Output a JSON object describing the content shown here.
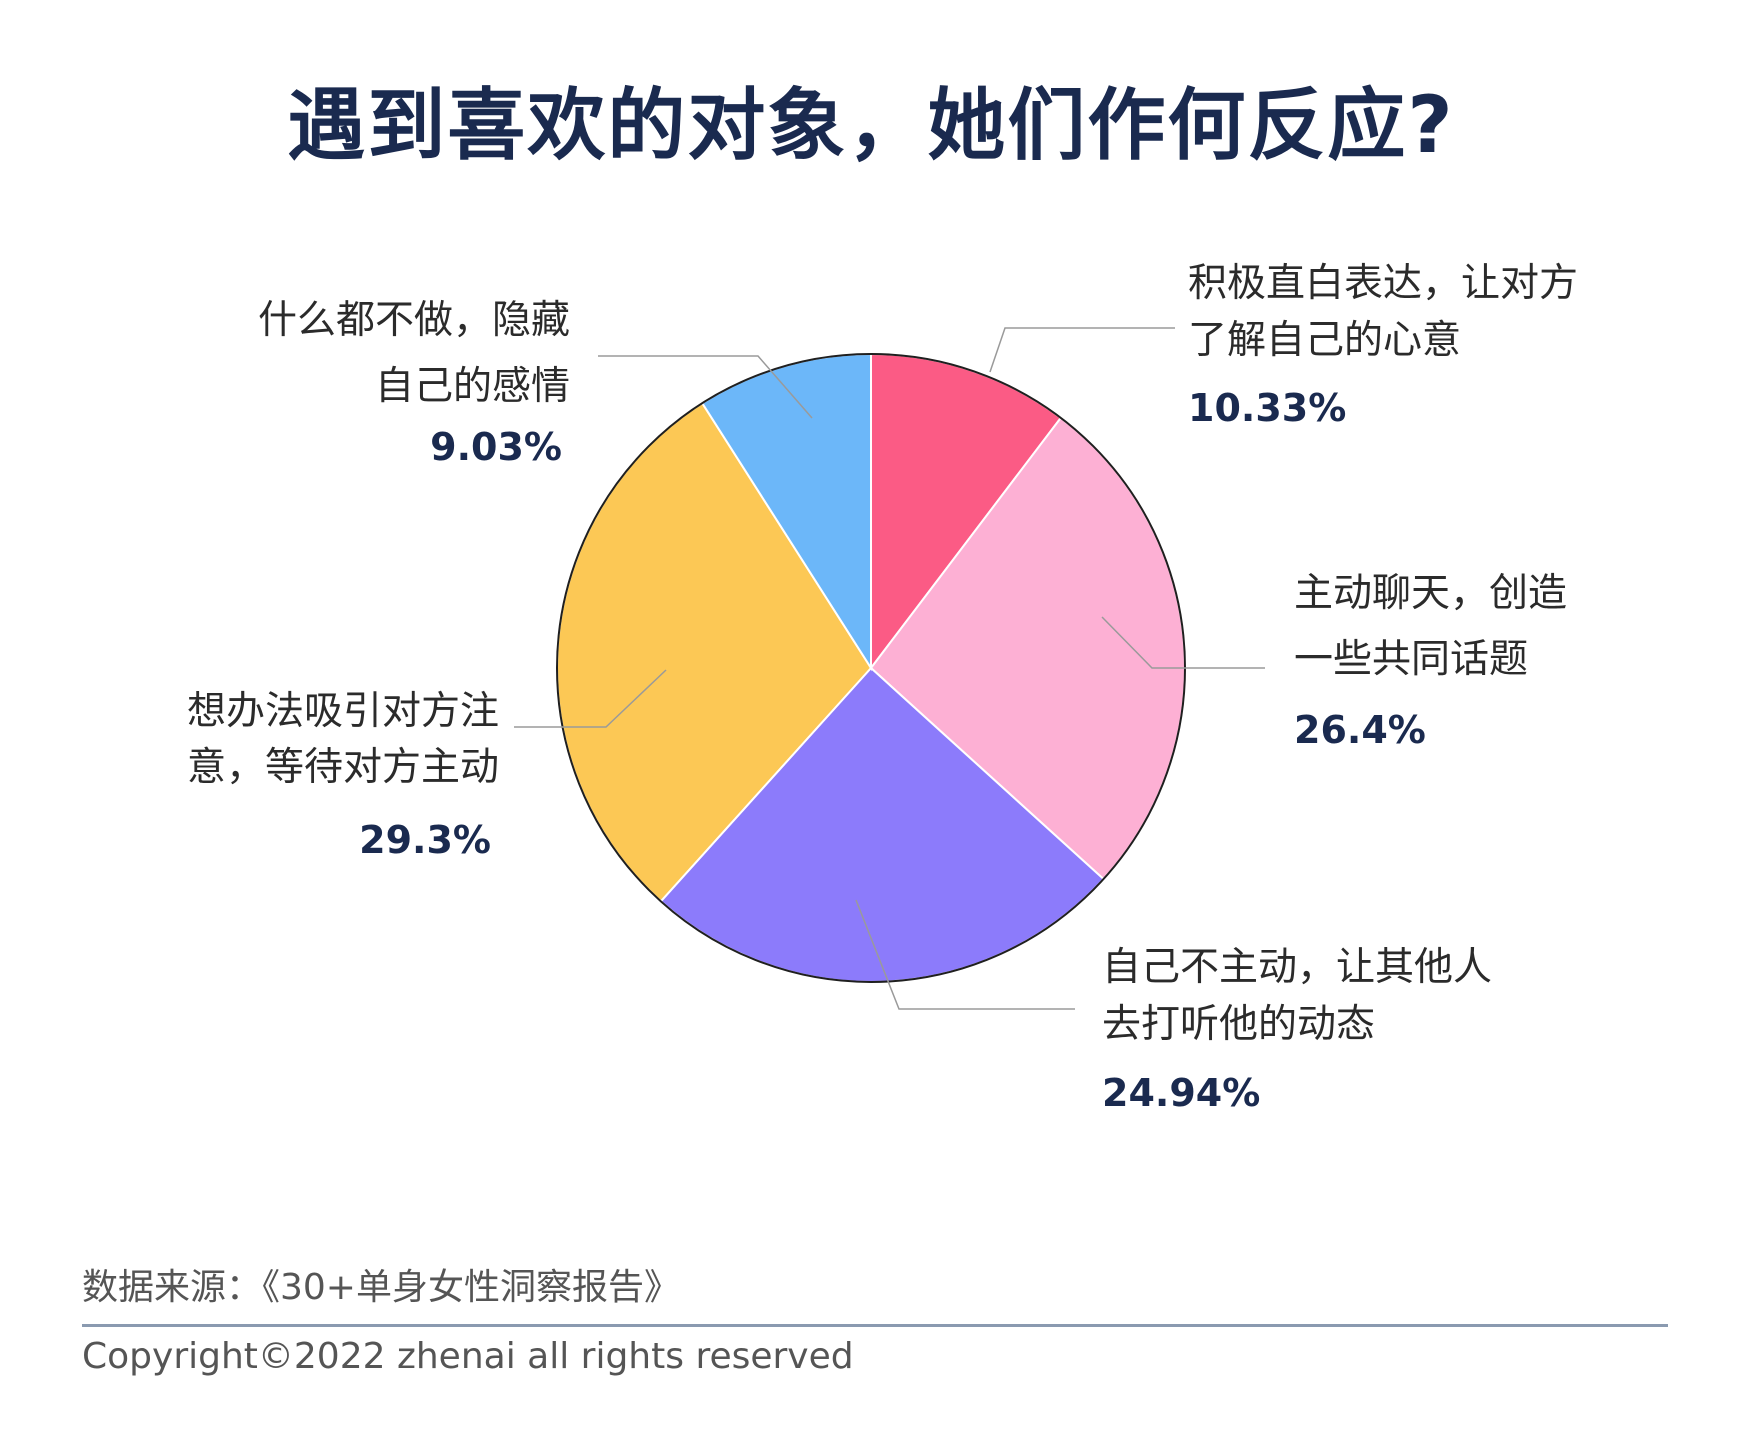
{
  "title": "遇到喜欢的对象，她们作何反应?",
  "chart_data": {
    "type": "pie",
    "slices": [
      {
        "label_lines": [
          "积极直白表达，让对方",
          "了解自己的心意"
        ],
        "value": 10.33,
        "percent_text": "10.33%",
        "color": "#fb5b85"
      },
      {
        "label_lines": [
          "主动聊天，创造",
          "一些共同话题"
        ],
        "value": 26.4,
        "percent_text": "26.4%",
        "color": "#fdb0d4"
      },
      {
        "label_lines": [
          "自己不主动，让其他人",
          "去打听他的动态"
        ],
        "value": 24.94,
        "percent_text": "24.94%",
        "color": "#8c7bfb"
      },
      {
        "label_lines": [
          "想办法吸引对方注",
          "意，等待对方主动"
        ],
        "value": 29.3,
        "percent_text": "29.3%",
        "color": "#fcc855"
      },
      {
        "label_lines": [
          "什么都不做，隐藏",
          "自己的感情"
        ],
        "value": 9.03,
        "percent_text": "9.03%",
        "color": "#6cb7f9"
      }
    ]
  },
  "footer": {
    "source": "数据来源：《30+单身女性洞察报告》",
    "copyright": "Copyright©2022  zhenai  all rights reserved"
  }
}
